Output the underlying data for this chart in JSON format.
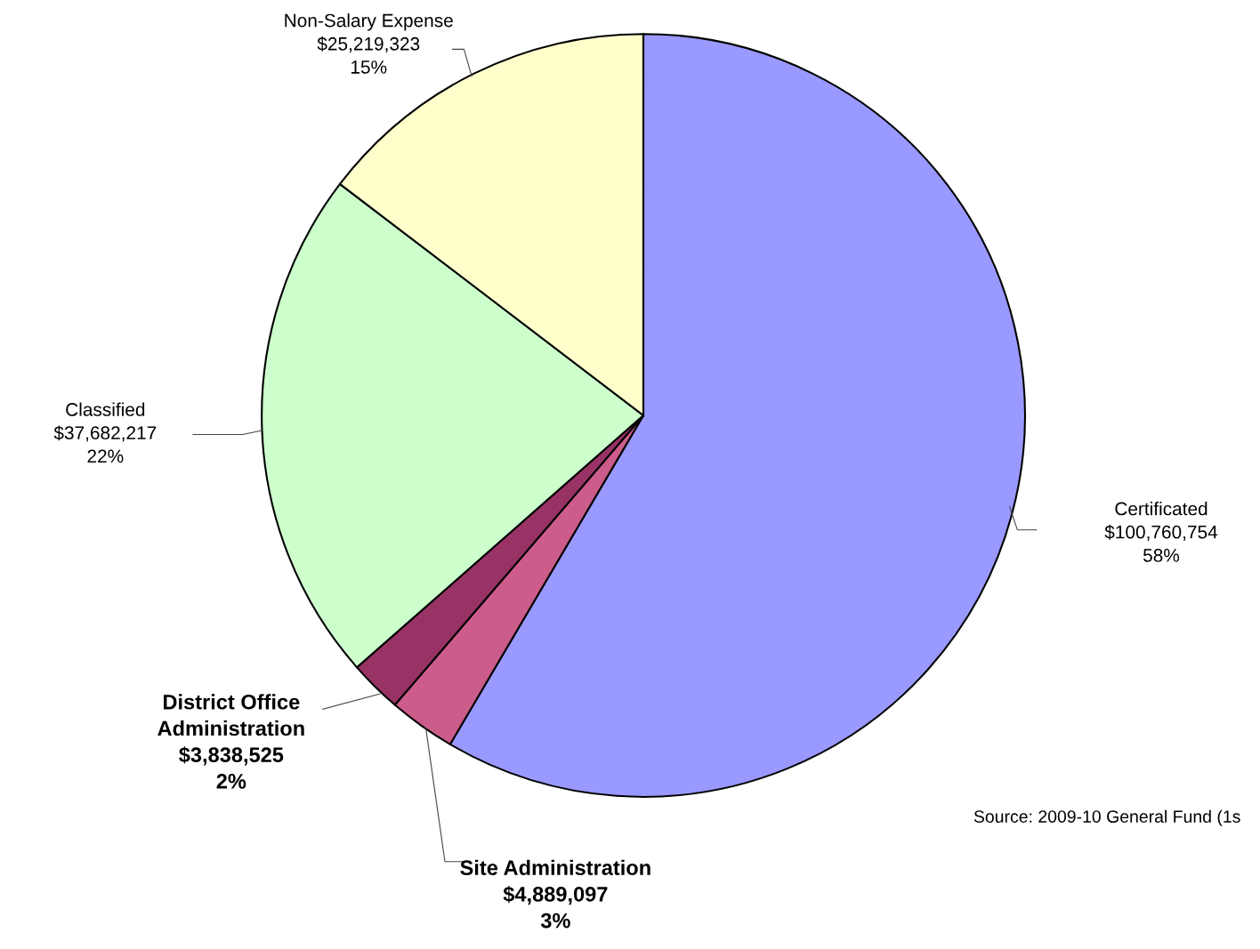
{
  "chart_data": {
    "type": "pie",
    "categories": [
      "Certificated",
      "Site Administration",
      "District Office Administration",
      "Classified",
      "Non-Salary Expense"
    ],
    "values": [
      100760754,
      4889097,
      3838525,
      37682217,
      25219323
    ],
    "colors": [
      "#9999ff",
      "#cc5c8a",
      "#993366",
      "#ccffcc",
      "#ffffcc"
    ],
    "value_labels": [
      "$100,760,754\n58%",
      "$4,889,097\n3%",
      "$3,838,525\n2%",
      "$37,682,217\n22%",
      "$25,219,323\n15%"
    ],
    "annotations": [
      "Source: 2009-10 General Fund (1s"
    ],
    "legend": false
  }
}
